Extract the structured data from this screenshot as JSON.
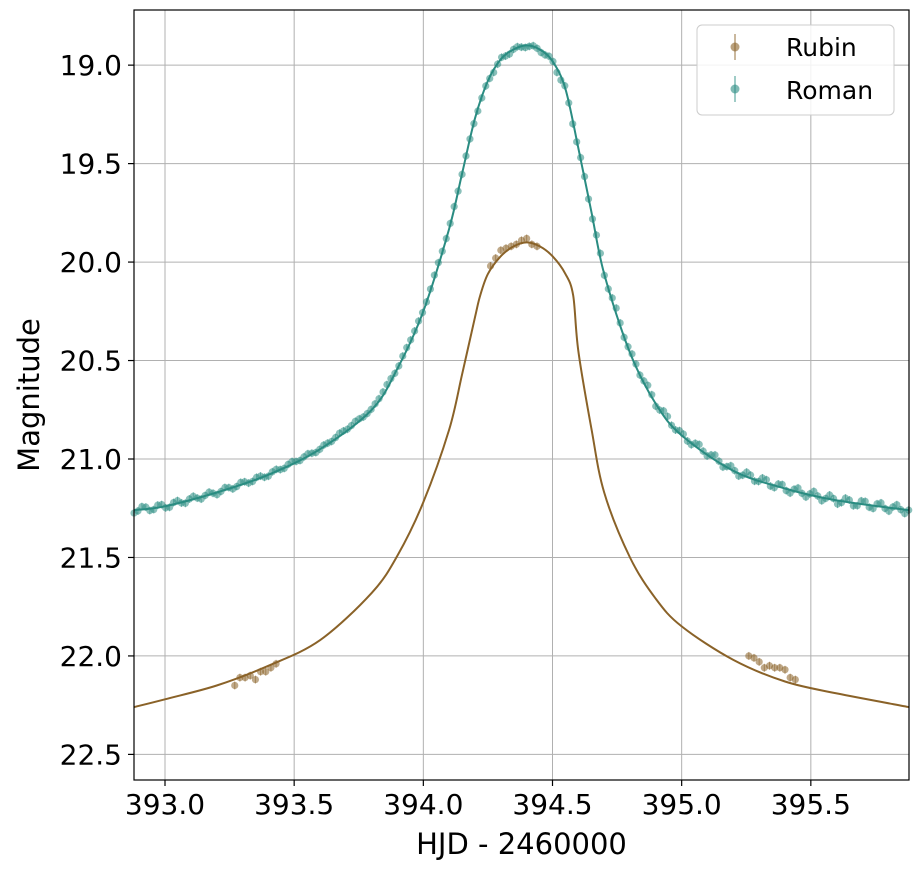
{
  "chart_data": {
    "type": "scatter",
    "xlabel": "HJD - 2460000",
    "ylabel": "Magnitude",
    "xlim": [
      392.88,
      395.88
    ],
    "ylim": [
      22.63,
      18.72
    ],
    "y_inverted": true,
    "grid": true,
    "legend_position": "top-right",
    "x_ticks": [
      393.0,
      393.5,
      394.0,
      394.5,
      395.0,
      395.5
    ],
    "x_tick_labels": [
      "393.0",
      "393.5",
      "394.0",
      "394.5",
      "395.0",
      "395.5"
    ],
    "y_ticks": [
      19.0,
      19.5,
      20.0,
      20.5,
      21.0,
      21.5,
      22.0,
      22.5
    ],
    "y_tick_labels": [
      "19.0",
      "19.5",
      "20.0",
      "20.5",
      "21.0",
      "21.5",
      "22.0",
      "22.5"
    ],
    "series": [
      {
        "name": "Rubin",
        "color": "#8a6228",
        "marker": "circle-with-errorbar",
        "model": {
          "x": [
            392.88,
            393.0,
            393.2,
            393.4,
            393.6,
            393.8,
            393.9,
            394.0,
            394.1,
            394.15,
            394.2,
            394.22,
            394.25,
            394.3,
            394.35,
            394.4,
            394.45,
            394.5,
            394.55,
            394.58,
            394.6,
            394.65,
            394.7,
            394.8,
            394.9,
            395.0,
            395.2,
            395.4,
            395.6,
            395.88
          ],
          "y": [
            22.26,
            22.22,
            22.15,
            22.05,
            21.92,
            21.68,
            21.49,
            21.22,
            20.85,
            20.57,
            20.28,
            20.17,
            20.06,
            19.97,
            19.92,
            19.9,
            19.92,
            19.97,
            20.06,
            20.17,
            20.45,
            20.84,
            21.17,
            21.5,
            21.71,
            21.85,
            22.02,
            22.13,
            22.19,
            22.26
          ]
        },
        "points": {
          "x": [
            393.27,
            393.29,
            393.31,
            393.33,
            393.35,
            393.37,
            393.39,
            393.41,
            393.43,
            394.26,
            394.28,
            394.3,
            394.32,
            394.34,
            394.36,
            394.38,
            394.4,
            394.42,
            394.44,
            395.26,
            395.28,
            395.3,
            395.32,
            395.34,
            395.36,
            395.38,
            395.4,
            395.42,
            395.44
          ],
          "y": [
            22.15,
            22.11,
            22.11,
            22.1,
            22.12,
            22.08,
            22.08,
            22.06,
            22.04,
            20.02,
            19.98,
            19.94,
            19.93,
            19.92,
            19.91,
            19.89,
            19.88,
            19.91,
            19.92,
            22.0,
            22.01,
            22.03,
            22.06,
            22.05,
            22.06,
            22.06,
            22.07,
            22.11,
            22.12
          ]
        }
      },
      {
        "name": "Roman",
        "color": "#2a8c82",
        "marker": "circle-with-errorbar",
        "model": {
          "x": [
            392.88,
            393.0,
            393.2,
            393.4,
            393.6,
            393.8,
            393.9,
            394.0,
            394.1,
            394.15,
            394.2,
            394.25,
            394.3,
            394.35,
            394.4,
            394.45,
            394.5,
            394.55,
            394.6,
            394.65,
            394.7,
            394.8,
            394.9,
            395.0,
            395.2,
            395.4,
            395.6,
            395.88
          ],
          "y": [
            21.26,
            21.24,
            21.17,
            21.08,
            20.95,
            20.75,
            20.54,
            20.25,
            19.83,
            19.55,
            19.27,
            19.08,
            18.97,
            18.92,
            18.9,
            18.92,
            18.98,
            19.12,
            19.42,
            19.74,
            20.06,
            20.46,
            20.72,
            20.88,
            21.06,
            21.15,
            21.21,
            21.26
          ]
        }
      }
    ]
  }
}
